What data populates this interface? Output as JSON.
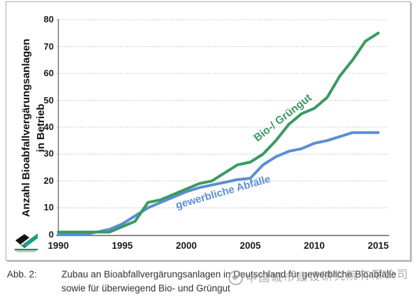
{
  "figure": {
    "y_axis_title_line1": "Anzahl Bioabfallvergärungsanlagen",
    "y_axis_title_line2": "in Betrieb",
    "green_series_label": "Bio-/ Grüngut",
    "blue_series_label": "gewerbliche Abfälle"
  },
  "chart_data": {
    "type": "line",
    "x": [
      1990,
      1991,
      1992,
      1993,
      1994,
      1995,
      1996,
      1997,
      1998,
      1999,
      2000,
      2001,
      2002,
      2003,
      2004,
      2005,
      2006,
      2007,
      2008,
      2009,
      2010,
      2011,
      2012,
      2013,
      2014,
      2015
    ],
    "series": [
      {
        "name": "Bio-/ Grüngut",
        "color": "#3a9a62",
        "values": [
          1,
          1,
          1,
          1,
          1,
          3,
          5,
          12,
          13,
          15,
          17,
          19,
          20,
          23,
          26,
          27,
          30,
          35,
          41,
          45,
          47,
          51,
          59,
          65,
          72,
          75
        ]
      },
      {
        "name": "gewerbliche Abfälle",
        "color": "#5a8ed5",
        "values": [
          0,
          0,
          0,
          1,
          2,
          4,
          7,
          10,
          12,
          14,
          16,
          17.5,
          18.5,
          19.5,
          20.5,
          21,
          26,
          29,
          31,
          32,
          34,
          35,
          36.5,
          38,
          38,
          38
        ]
      }
    ],
    "title": "",
    "xlabel": "",
    "ylabel": "Anzahl Bioabfallvergärungsanlagen in Betrieb",
    "ylim": [
      0,
      80
    ],
    "xlim": [
      1990,
      2015
    ],
    "y_ticks": [
      0,
      10,
      20,
      30,
      40,
      50,
      60,
      70,
      80
    ],
    "x_ticks": [
      1990,
      1995,
      2000,
      2005,
      2010,
      2015
    ],
    "grid": true,
    "legend_position": "inline rotated labels on lines"
  },
  "caption": {
    "label": "Abb. 2:",
    "lines": [
      "Zubau an Bioabfallvergärungsanlagen in Deutschland für gewerbliche Bioabfälle",
      "sowie für überwiegend Bio- und Grüngut"
    ]
  },
  "watermark": {
    "text": "中国城市建设研究院有限公司"
  },
  "colors": {
    "green_line": "#3a9a62",
    "blue_line": "#5a8ed5",
    "grid": "#bdbdbd",
    "axis": "#6f6f6f",
    "frame": "#ababab",
    "watermark_gray": "#8f8f8f"
  }
}
